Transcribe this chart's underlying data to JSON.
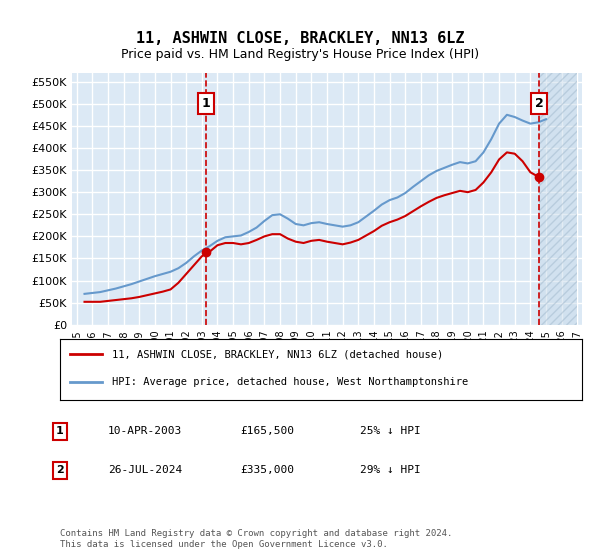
{
  "title": "11, ASHWIN CLOSE, BRACKLEY, NN13 6LZ",
  "subtitle": "Price paid vs. HM Land Registry's House Price Index (HPI)",
  "background_color": "#dce9f5",
  "plot_bg_color": "#dce9f5",
  "hatch_color": "#b0c8e0",
  "grid_color": "#ffffff",
  "ylabel_format": "£{0}K",
  "ylim": [
    0,
    570000
  ],
  "yticks": [
    0,
    50000,
    100000,
    150000,
    200000,
    250000,
    300000,
    350000,
    400000,
    450000,
    500000,
    550000
  ],
  "xlim_start": 1995,
  "xlim_end": 2027,
  "xticks": [
    1995,
    1996,
    1997,
    1998,
    1999,
    2000,
    2001,
    2002,
    2003,
    2004,
    2005,
    2006,
    2007,
    2008,
    2009,
    2010,
    2011,
    2012,
    2013,
    2014,
    2015,
    2016,
    2017,
    2018,
    2019,
    2020,
    2021,
    2022,
    2023,
    2024,
    2025,
    2026,
    2027
  ],
  "sale1_date": 2003.27,
  "sale1_price": 165500,
  "sale1_label": "1",
  "sale2_date": 2024.57,
  "sale2_price": 335000,
  "sale2_label": "2",
  "red_line_color": "#cc0000",
  "blue_line_color": "#6699cc",
  "marker_color": "#cc0000",
  "legend_label_red": "11, ASHWIN CLOSE, BRACKLEY, NN13 6LZ (detached house)",
  "legend_label_blue": "HPI: Average price, detached house, West Northamptonshire",
  "annotation1": "1    10-APR-2003         £165,500         25% ↓ HPI",
  "annotation2": "2    26-JUL-2024         £335,000         29% ↓ HPI",
  "footer": "Contains HM Land Registry data © Crown copyright and database right 2024.\nThis data is licensed under the Open Government Licence v3.0.",
  "hpi_years": [
    1995.5,
    1996.0,
    1996.5,
    1997.0,
    1997.5,
    1998.0,
    1998.5,
    1999.0,
    1999.5,
    2000.0,
    2000.5,
    2001.0,
    2001.5,
    2002.0,
    2002.5,
    2003.0,
    2003.5,
    2004.0,
    2004.5,
    2005.0,
    2005.5,
    2006.0,
    2006.5,
    2007.0,
    2007.5,
    2008.0,
    2008.5,
    2009.0,
    2009.5,
    2010.0,
    2010.5,
    2011.0,
    2011.5,
    2012.0,
    2012.5,
    2013.0,
    2013.5,
    2014.0,
    2014.5,
    2015.0,
    2015.5,
    2016.0,
    2016.5,
    2017.0,
    2017.5,
    2018.0,
    2018.5,
    2019.0,
    2019.5,
    2020.0,
    2020.5,
    2021.0,
    2021.5,
    2022.0,
    2022.5,
    2023.0,
    2023.5,
    2024.0,
    2024.5,
    2025.0
  ],
  "hpi_values": [
    70000,
    72000,
    74000,
    78000,
    82000,
    87000,
    92000,
    98000,
    104000,
    110000,
    115000,
    120000,
    128000,
    140000,
    155000,
    168000,
    178000,
    190000,
    198000,
    200000,
    202000,
    210000,
    220000,
    235000,
    248000,
    250000,
    240000,
    228000,
    225000,
    230000,
    232000,
    228000,
    225000,
    222000,
    225000,
    232000,
    245000,
    258000,
    272000,
    282000,
    288000,
    298000,
    312000,
    325000,
    338000,
    348000,
    355000,
    362000,
    368000,
    365000,
    370000,
    390000,
    420000,
    455000,
    475000,
    470000,
    462000,
    455000,
    458000,
    465000
  ],
  "red_years": [
    1995.5,
    1996.0,
    1996.5,
    1997.0,
    1997.5,
    1998.0,
    1998.5,
    1999.0,
    1999.5,
    2000.0,
    2000.5,
    2001.0,
    2001.5,
    2002.0,
    2002.5,
    2003.0,
    2003.5,
    2004.0,
    2004.5,
    2005.0,
    2005.5,
    2006.0,
    2006.5,
    2007.0,
    2007.5,
    2008.0,
    2008.5,
    2009.0,
    2009.5,
    2010.0,
    2010.5,
    2011.0,
    2011.5,
    2012.0,
    2012.5,
    2013.0,
    2013.5,
    2014.0,
    2014.5,
    2015.0,
    2015.5,
    2016.0,
    2016.5,
    2017.0,
    2017.5,
    2018.0,
    2018.5,
    2019.0,
    2019.5,
    2020.0,
    2020.5,
    2021.0,
    2021.5,
    2022.0,
    2022.5,
    2023.0,
    2023.5,
    2024.0,
    2024.5
  ],
  "red_values": [
    52000,
    52000,
    52000,
    54000,
    56000,
    58000,
    60000,
    63000,
    67000,
    71000,
    75000,
    80000,
    95000,
    115000,
    135000,
    155000,
    165500,
    180000,
    185000,
    185000,
    182000,
    185000,
    192000,
    200000,
    205000,
    205000,
    195000,
    188000,
    185000,
    190000,
    192000,
    188000,
    185000,
    182000,
    186000,
    192000,
    202000,
    212000,
    224000,
    232000,
    238000,
    246000,
    257000,
    268000,
    278000,
    287000,
    293000,
    298000,
    303000,
    300000,
    305000,
    322000,
    345000,
    374000,
    390000,
    387000,
    370000,
    345000,
    335000
  ]
}
